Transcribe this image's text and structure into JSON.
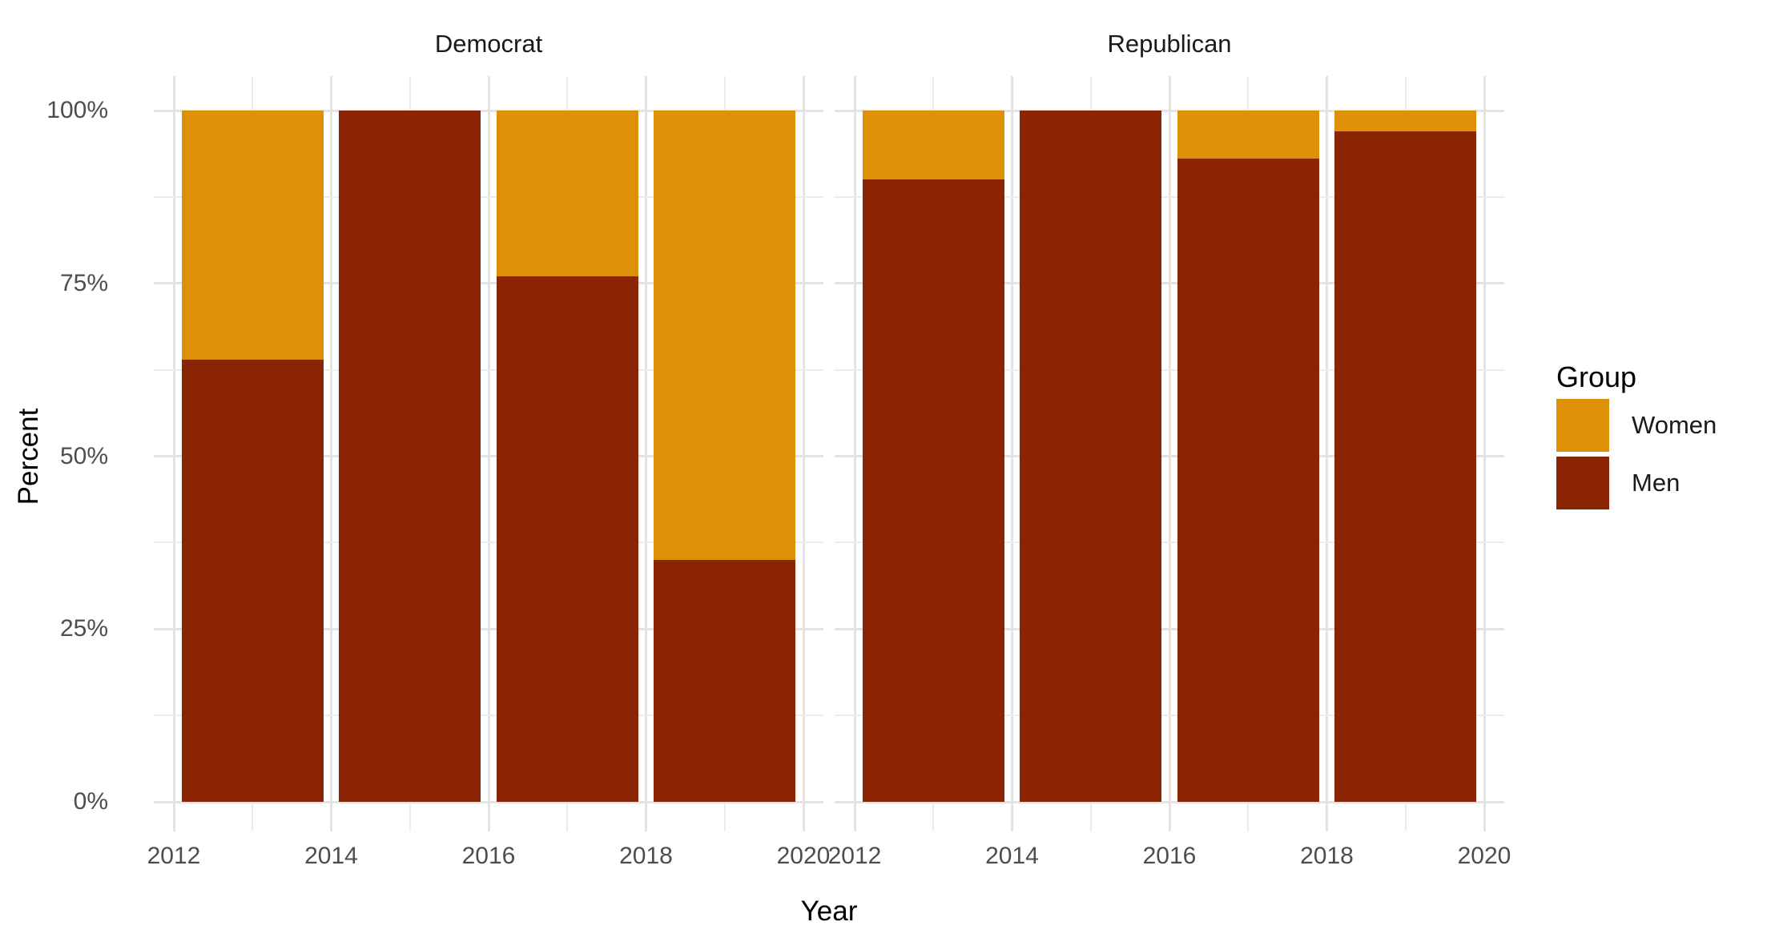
{
  "chart_data": {
    "type": "bar",
    "stacking": "percent",
    "title": "",
    "facets": [
      {
        "label": "Democrat",
        "categories": [
          2013,
          2015,
          2017,
          2019
        ],
        "series": [
          {
            "name": "Men",
            "values": [
              64,
              100,
              76,
              35
            ]
          },
          {
            "name": "Women",
            "values": [
              36,
              0,
              24,
              65
            ]
          }
        ]
      },
      {
        "label": "Republican",
        "categories": [
          2013,
          2015,
          2017,
          2019
        ],
        "series": [
          {
            "name": "Men",
            "values": [
              90,
              100,
              93,
              97
            ]
          },
          {
            "name": "Women",
            "values": [
              10,
              0,
              7,
              3
            ]
          }
        ]
      }
    ],
    "x": {
      "label": "Year",
      "ticks": [
        "2012",
        "2014",
        "2016",
        "2018",
        "2020"
      ],
      "tick_years": [
        2012,
        2014,
        2016,
        2018,
        2020
      ],
      "minor_years": [
        2013,
        2015,
        2017,
        2019
      ],
      "range": [
        2011.75,
        2020.25
      ]
    },
    "y": {
      "label": "Percent",
      "ticks": [
        "0%",
        "25%",
        "50%",
        "75%",
        "100%"
      ],
      "tick_values": [
        0,
        25,
        50,
        75,
        100
      ],
      "minor_values": [
        12.5,
        37.5,
        62.5,
        87.5
      ],
      "range": [
        0,
        100
      ]
    },
    "legend": {
      "title": "Group",
      "position": "right",
      "entries": [
        {
          "label": "Women",
          "color": "#de9007"
        },
        {
          "label": "Men",
          "color": "#8b2402"
        }
      ]
    },
    "colors": {
      "Women": "#de9007",
      "Men": "#8b2402"
    },
    "grid": true,
    "bar_width_years": 1.8
  }
}
